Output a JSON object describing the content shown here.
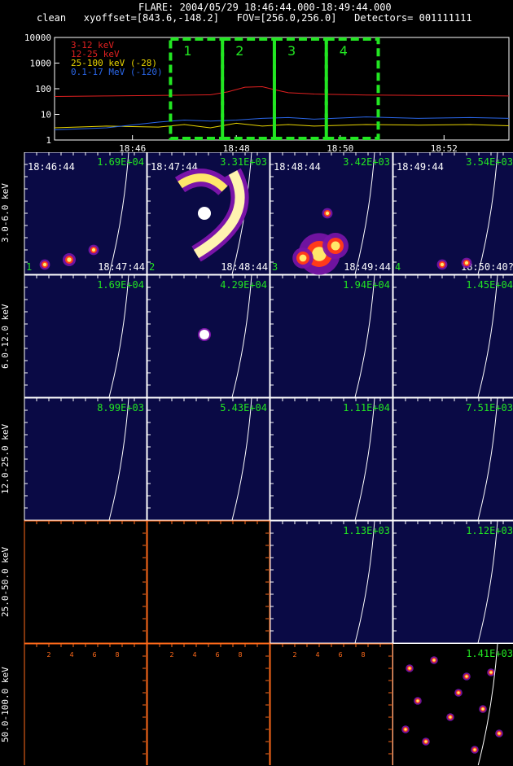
{
  "header": {
    "line1": "FLARE: 2004/05/29 18:46:44.000-18:49:44.000",
    "line2": "clean   xyoffset=[843.6,-148.2]   FOV=[256.0,256.0]   Detectors= 001111111"
  },
  "colors": {
    "bg": "#000000",
    "panel": "#0a0a45",
    "green": "#22e622",
    "orange": "#ff6a1a",
    "red": "#e02020",
    "yellow": "#e8d400",
    "blue": "#2a66e8"
  },
  "chart_data": [
    {
      "type": "line",
      "yscale": "log",
      "ylim": [
        1,
        10000
      ],
      "yticks": [
        "1",
        "10",
        "100",
        "1000",
        "10000"
      ],
      "xticks": [
        "18:46",
        "18:48",
        "18:50",
        "18:52"
      ],
      "xlim": [
        "18:44:30",
        "18:53:15"
      ],
      "intervals": [
        {
          "label": "1",
          "start": "18:46:44",
          "end": "18:47:44"
        },
        {
          "label": "2",
          "start": "18:47:44",
          "end": "18:48:44"
        },
        {
          "label": "3",
          "start": "18:48:44",
          "end": "18:49:44"
        },
        {
          "label": "4",
          "start": "18:49:44",
          "end": "18:50:44"
        }
      ],
      "series": [
        {
          "name": "3-12 keV",
          "color": "#e02020",
          "x": [
            "18:44:30",
            "18:45:30",
            "18:46:30",
            "18:47:00",
            "18:47:30",
            "18:47:50",
            "18:48:10",
            "18:48:30",
            "18:48:45",
            "18:49:00",
            "18:49:30",
            "18:50:30",
            "18:51:30",
            "18:52:30",
            "18:53:15"
          ],
          "values": [
            50,
            52,
            55,
            56,
            58,
            75,
            115,
            120,
            90,
            70,
            62,
            57,
            55,
            54,
            52
          ]
        },
        {
          "name": "12-25 keV",
          "color": "#e02020",
          "x": [
            "18:44:30",
            "18:53:15"
          ],
          "values": [
            null,
            null
          ]
        },
        {
          "name": "25-100 keV (-28)",
          "color": "#e8d400",
          "x": [
            "18:44:30",
            "18:45:30",
            "18:46:30",
            "18:47:00",
            "18:47:30",
            "18:48:00",
            "18:48:30",
            "18:49:00",
            "18:49:30",
            "18:50:30",
            "18:51:30",
            "18:52:30",
            "18:53:15"
          ],
          "values": [
            3,
            3.5,
            3.2,
            4,
            3,
            4.5,
            3.5,
            4,
            3.5,
            4,
            3.8,
            4,
            3.6
          ]
        },
        {
          "name": "0.1-17 MeV (-120)",
          "color": "#2a66e8",
          "x": [
            "18:44:30",
            "18:45:30",
            "18:46:30",
            "18:47:00",
            "18:47:30",
            "18:48:00",
            "18:48:30",
            "18:49:00",
            "18:49:30",
            "18:50:30",
            "18:51:30",
            "18:52:30",
            "18:53:15"
          ],
          "values": [
            2.5,
            3,
            5,
            6,
            5.5,
            6,
            7,
            7.5,
            6.5,
            8,
            7,
            7.5,
            7
          ]
        }
      ]
    },
    {
      "type": "heatmap",
      "row_labels": [
        "3.0-6.0 keV",
        "6.0-12.0 keV",
        "12.0-25.0 keV",
        "25.0-50.0 keV",
        "50.0-100.0 keV"
      ],
      "column_times": [
        "18:46:44",
        "18:47:44",
        "18:48:44",
        "18:49:44"
      ],
      "column_end_times": [
        "18:47:44",
        "18:48:44",
        "18:49:44",
        "18:50:40?"
      ],
      "column_numbers": [
        "1",
        "2",
        "3",
        "4"
      ],
      "maxima": [
        [
          "1.69E+04",
          "3.31E+03",
          "3.42E+03",
          "3.54E+03"
        ],
        [
          "1.69E+04",
          "4.29E+04",
          "1.94E+04",
          "1.45E+04"
        ],
        [
          "8.99E+03",
          "5.43E+04",
          "1.11E+04",
          "7.51E+03"
        ],
        [
          "",
          "",
          "1.13E+03",
          "1.12E+03"
        ],
        [
          "",
          "",
          "",
          "1.41E+03"
        ]
      ],
      "empty_panels": [
        [
          3,
          0
        ],
        [
          3,
          1
        ],
        [
          4,
          0
        ],
        [
          4,
          1
        ],
        [
          4,
          2
        ]
      ],
      "axis_ticks_empty": [
        "2",
        "4",
        "6",
        "8"
      ]
    }
  ]
}
